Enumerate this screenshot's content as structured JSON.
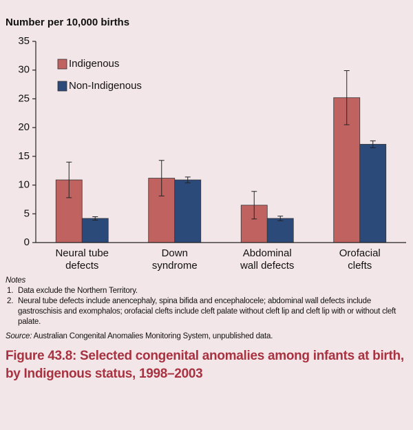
{
  "chart_data": {
    "type": "bar",
    "title": "Number per 10,000 births",
    "categories": [
      [
        "Neural tube",
        "defects"
      ],
      [
        "Down",
        "syndrome"
      ],
      [
        "Abdominal",
        "wall defects"
      ],
      [
        "Orofacial",
        "clefts"
      ]
    ],
    "series": [
      {
        "name": "Indigenous",
        "color": "#c0625f",
        "values": [
          10.9,
          11.2,
          6.5,
          25.2
        ],
        "errors": [
          3.1,
          3.1,
          2.4,
          4.7
        ]
      },
      {
        "name": "Non-Indigenous",
        "color": "#2b4a7a",
        "values": [
          4.2,
          10.9,
          4.2,
          17.1
        ],
        "errors": [
          0.3,
          0.5,
          0.4,
          0.6
        ]
      }
    ],
    "ylim": [
      0,
      35
    ],
    "yticks": [
      0,
      5,
      10,
      15,
      20,
      25,
      30,
      35
    ],
    "legend": "top-left",
    "grid": false
  },
  "notes": {
    "heading": "Notes",
    "items": [
      {
        "number": "1.",
        "text": "Data exclude the Northern Territory."
      },
      {
        "number": "2.",
        "text": "Neural tube defects include anencephaly, spina bifida and encephalocele; abdominal wall defects include gastroschisis and exomphalos; orofacial clefts include cleft palate without cleft lip and cleft lip with or without cleft palate."
      }
    ]
  },
  "source": {
    "label": "Source:",
    "text": "Australian Congenital Anomalies Monitoring System, unpublished data."
  },
  "caption": "Figure 43.8: Selected congenital anomalies among infants at birth, by Indigenous status, 1998–2003"
}
